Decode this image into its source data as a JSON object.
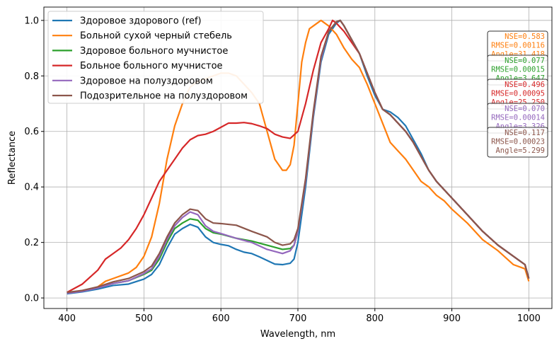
{
  "chart_data": {
    "type": "line",
    "xlabel": "Wavelength, nm",
    "ylabel": "Reflectance",
    "xlim": [
      370,
      1030
    ],
    "ylim": [
      -0.038,
      1.048
    ],
    "xticks": [
      400,
      500,
      600,
      700,
      800,
      900,
      1000
    ],
    "yticks": [
      0.0,
      0.2,
      0.4,
      0.6,
      0.8,
      1.0
    ],
    "ytick_labels": [
      "0.0",
      "0.2",
      "0.4",
      "0.6",
      "0.8",
      "1.0"
    ],
    "grid": true,
    "legend_position": "top-left",
    "series": [
      {
        "name": "Здоровое здорового (ref)",
        "color": "#1f77b4",
        "x": [
          400,
          420,
          440,
          460,
          480,
          500,
          510,
          520,
          530,
          540,
          550,
          560,
          570,
          580,
          590,
          600,
          610,
          620,
          630,
          640,
          650,
          660,
          670,
          680,
          690,
          695,
          700,
          710,
          720,
          730,
          740,
          750,
          755,
          760,
          770,
          780,
          790,
          800,
          810,
          820,
          830,
          840,
          850,
          860,
          870,
          880,
          890,
          900,
          920,
          940,
          960,
          980,
          995,
          1000
        ],
        "y": [
          0.015,
          0.022,
          0.032,
          0.045,
          0.05,
          0.068,
          0.085,
          0.12,
          0.18,
          0.23,
          0.25,
          0.265,
          0.255,
          0.22,
          0.2,
          0.193,
          0.188,
          0.175,
          0.165,
          0.16,
          0.148,
          0.135,
          0.122,
          0.12,
          0.125,
          0.14,
          0.2,
          0.4,
          0.65,
          0.85,
          0.95,
          0.99,
          1.0,
          0.98,
          0.93,
          0.88,
          0.8,
          0.73,
          0.68,
          0.67,
          0.65,
          0.62,
          0.57,
          0.52,
          0.46,
          0.42,
          0.39,
          0.36,
          0.3,
          0.24,
          0.19,
          0.15,
          0.12,
          0.07
        ]
      },
      {
        "name": "Больной сухой черный стебель",
        "color": "#ff7f0e",
        "x": [
          400,
          420,
          440,
          450,
          460,
          480,
          490,
          500,
          510,
          520,
          530,
          540,
          550,
          560,
          570,
          580,
          590,
          600,
          610,
          620,
          630,
          640,
          650,
          660,
          665,
          670,
          680,
          685,
          690,
          695,
          700,
          705,
          710,
          715,
          720,
          730,
          740,
          750,
          760,
          770,
          780,
          790,
          800,
          810,
          820,
          830,
          840,
          850,
          860,
          870,
          880,
          890,
          900,
          920,
          940,
          960,
          980,
          995,
          1000
        ],
        "y": [
          0.02,
          0.025,
          0.04,
          0.06,
          0.07,
          0.09,
          0.11,
          0.15,
          0.22,
          0.34,
          0.5,
          0.62,
          0.7,
          0.76,
          0.78,
          0.79,
          0.8,
          0.81,
          0.81,
          0.8,
          0.77,
          0.74,
          0.7,
          0.6,
          0.55,
          0.5,
          0.46,
          0.46,
          0.48,
          0.55,
          0.7,
          0.85,
          0.92,
          0.97,
          0.98,
          1.0,
          0.98,
          0.95,
          0.9,
          0.86,
          0.83,
          0.77,
          0.7,
          0.63,
          0.56,
          0.53,
          0.5,
          0.46,
          0.42,
          0.4,
          0.37,
          0.35,
          0.32,
          0.27,
          0.21,
          0.17,
          0.12,
          0.105,
          0.06
        ]
      },
      {
        "name": "Здоровое больного мучнистое",
        "color": "#2ca02c",
        "x": [
          400,
          420,
          440,
          460,
          480,
          500,
          510,
          520,
          530,
          540,
          550,
          560,
          570,
          580,
          590,
          600,
          620,
          640,
          660,
          680,
          690,
          695,
          700,
          710,
          720,
          730,
          740,
          750,
          755,
          760,
          770,
          780,
          790,
          800,
          810,
          820,
          830,
          840,
          850,
          860,
          870,
          880,
          890,
          900,
          920,
          940,
          960,
          980,
          995,
          1000
        ],
        "y": [
          0.018,
          0.025,
          0.037,
          0.052,
          0.062,
          0.085,
          0.1,
          0.14,
          0.2,
          0.25,
          0.27,
          0.285,
          0.28,
          0.25,
          0.235,
          0.23,
          0.215,
          0.205,
          0.19,
          0.175,
          0.178,
          0.19,
          0.24,
          0.42,
          0.66,
          0.86,
          0.96,
          0.995,
          1.0,
          0.98,
          0.93,
          0.88,
          0.81,
          0.74,
          0.68,
          0.66,
          0.63,
          0.6,
          0.56,
          0.51,
          0.46,
          0.42,
          0.39,
          0.36,
          0.3,
          0.24,
          0.19,
          0.15,
          0.12,
          0.07
        ]
      },
      {
        "name": "Больное больного мучнистое",
        "color": "#d62728",
        "x": [
          400,
          420,
          440,
          450,
          460,
          470,
          480,
          490,
          500,
          510,
          520,
          530,
          540,
          550,
          560,
          570,
          580,
          590,
          600,
          610,
          620,
          630,
          640,
          650,
          660,
          670,
          680,
          690,
          700,
          710,
          720,
          730,
          740,
          745,
          750,
          760,
          770,
          780,
          790,
          800,
          810,
          820,
          830,
          840,
          850,
          860,
          870,
          880,
          890,
          900,
          920,
          940,
          960,
          980,
          995,
          1000
        ],
        "y": [
          0.02,
          0.05,
          0.1,
          0.14,
          0.16,
          0.18,
          0.21,
          0.25,
          0.3,
          0.36,
          0.42,
          0.46,
          0.5,
          0.54,
          0.57,
          0.585,
          0.59,
          0.6,
          0.615,
          0.63,
          0.63,
          0.632,
          0.628,
          0.62,
          0.61,
          0.59,
          0.58,
          0.575,
          0.6,
          0.7,
          0.82,
          0.92,
          0.97,
          1.0,
          0.99,
          0.96,
          0.92,
          0.88,
          0.81,
          0.74,
          0.68,
          0.66,
          0.63,
          0.6,
          0.56,
          0.51,
          0.46,
          0.42,
          0.39,
          0.36,
          0.3,
          0.24,
          0.19,
          0.15,
          0.12,
          0.07
        ]
      },
      {
        "name": "Здоровое на полуздоровом",
        "color": "#9467bd",
        "x": [
          400,
          420,
          440,
          460,
          480,
          500,
          510,
          520,
          530,
          540,
          550,
          560,
          570,
          580,
          590,
          600,
          620,
          640,
          660,
          680,
          690,
          695,
          700,
          710,
          720,
          730,
          740,
          750,
          755,
          760,
          770,
          780,
          790,
          800,
          810,
          820,
          830,
          840,
          850,
          860,
          870,
          880,
          890,
          900,
          920,
          940,
          960,
          980,
          995,
          1000
        ],
        "y": [
          0.017,
          0.024,
          0.036,
          0.052,
          0.062,
          0.088,
          0.105,
          0.15,
          0.21,
          0.26,
          0.29,
          0.31,
          0.3,
          0.26,
          0.24,
          0.232,
          0.215,
          0.2,
          0.175,
          0.16,
          0.17,
          0.19,
          0.24,
          0.42,
          0.66,
          0.86,
          0.96,
          0.995,
          1.0,
          0.98,
          0.93,
          0.88,
          0.81,
          0.74,
          0.68,
          0.66,
          0.63,
          0.6,
          0.56,
          0.51,
          0.46,
          0.42,
          0.39,
          0.36,
          0.3,
          0.24,
          0.19,
          0.15,
          0.12,
          0.07
        ]
      },
      {
        "name": "Подозрительное на полуздоровом",
        "color": "#8c564b",
        "x": [
          400,
          420,
          440,
          460,
          480,
          500,
          510,
          520,
          530,
          540,
          550,
          560,
          570,
          580,
          590,
          600,
          620,
          640,
          660,
          670,
          680,
          690,
          695,
          700,
          710,
          720,
          730,
          740,
          750,
          755,
          760,
          770,
          780,
          790,
          800,
          810,
          820,
          830,
          840,
          850,
          860,
          870,
          880,
          890,
          900,
          920,
          940,
          960,
          980,
          995,
          1000
        ],
        "y": [
          0.02,
          0.027,
          0.04,
          0.058,
          0.07,
          0.095,
          0.115,
          0.16,
          0.22,
          0.27,
          0.3,
          0.32,
          0.315,
          0.285,
          0.27,
          0.268,
          0.262,
          0.24,
          0.22,
          0.2,
          0.19,
          0.195,
          0.21,
          0.25,
          0.43,
          0.67,
          0.87,
          0.96,
          0.995,
          1.0,
          0.98,
          0.93,
          0.88,
          0.81,
          0.74,
          0.68,
          0.66,
          0.63,
          0.6,
          0.56,
          0.51,
          0.46,
          0.42,
          0.39,
          0.36,
          0.3,
          0.24,
          0.19,
          0.15,
          0.12,
          0.07
        ]
      }
    ],
    "annotations": [
      {
        "color": "#ff7f0e",
        "lines": [
          "NSE=0.583",
          "RMSE=0.00116",
          "Angle=31.418"
        ]
      },
      {
        "color": "#2ca02c",
        "lines": [
          "NSE=0.077",
          "RMSE=0.00015",
          "Angle=3.647"
        ]
      },
      {
        "color": "#d62728",
        "lines": [
          "NSE=0.496",
          "RMSE=0.00095",
          "Angle=25.250"
        ]
      },
      {
        "color": "#9467bd",
        "lines": [
          "NSE=0.070",
          "RMSE=0.00014",
          "Angle=3.326"
        ]
      },
      {
        "color": "#8c564b",
        "lines": [
          "NSE=0.117",
          "RMSE=0.00023",
          "Angle=5.299"
        ]
      }
    ]
  }
}
